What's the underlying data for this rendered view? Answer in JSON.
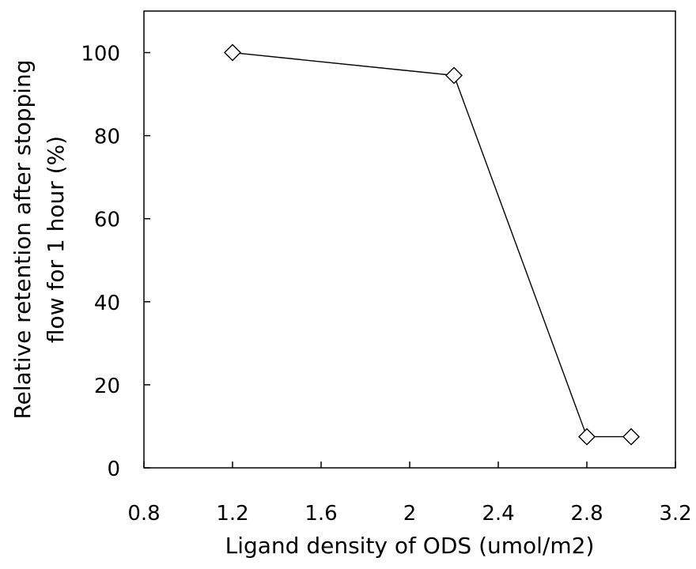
{
  "chart_data": {
    "type": "line",
    "title": "",
    "xlabel": "Ligand density of ODS (umol/m2)",
    "ylabel_lines": [
      "Relative retention after stopping",
      "flow for 1 hour (%)"
    ],
    "xlim": [
      0.8,
      3.2
    ],
    "ylim": [
      0,
      110
    ],
    "x_ticks": [
      0.8,
      1.2,
      1.6,
      2,
      2.4,
      2.8,
      3.2
    ],
    "x_tick_labels": [
      "0.8",
      "1.2",
      "1.6",
      "2",
      "2.4",
      "2.8",
      "3.2"
    ],
    "y_ticks": [
      0,
      20,
      40,
      60,
      80,
      100
    ],
    "y_tick_labels": [
      "0",
      "20",
      "40",
      "60",
      "80",
      "100"
    ],
    "grid": false,
    "marker": "diamond-open",
    "line_color": "#000000",
    "series": [
      {
        "x": [
          1.2,
          2.2,
          2.8,
          3.0
        ],
        "y": [
          100,
          94.5,
          7.5,
          7.5
        ]
      }
    ]
  }
}
